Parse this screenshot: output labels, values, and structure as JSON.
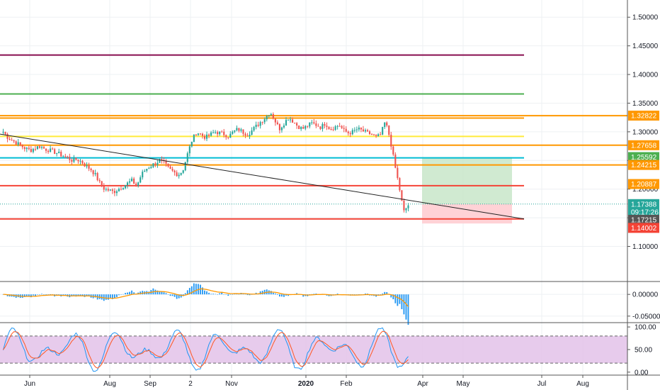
{
  "chart_data": {
    "type": "candlestick",
    "main": {
      "y_ticks": [
        "1.10000",
        "1.15000",
        "1.20000",
        "1.25000",
        "1.30000",
        "1.35000",
        "1.40000",
        "1.45000",
        "1.50000"
      ],
      "y_tick_values": [
        1.1,
        1.15,
        1.2,
        1.25,
        1.3,
        1.35,
        1.4,
        1.45,
        1.5
      ],
      "ylim": [
        1.04,
        1.53
      ],
      "x_ticks": [
        "Jun",
        "Aug",
        "Sep",
        "2",
        "Nov",
        "2020",
        "Feb",
        "Apr",
        "May",
        "Jul",
        "Aug"
      ],
      "price_path": [
        1.3,
        1.29,
        1.285,
        1.28,
        1.275,
        1.27,
        1.268,
        1.272,
        1.275,
        1.27,
        1.268,
        1.265,
        1.262,
        1.258,
        1.255,
        1.25,
        1.252,
        1.248,
        1.24,
        1.235,
        1.225,
        1.21,
        1.2,
        1.198,
        1.195,
        1.2,
        1.205,
        1.21,
        1.215,
        1.205,
        1.225,
        1.235,
        1.24,
        1.245,
        1.25,
        1.245,
        1.235,
        1.23,
        1.225,
        1.232,
        1.26,
        1.285,
        1.3,
        1.295,
        1.29,
        1.295,
        1.3,
        1.298,
        1.296,
        1.292,
        1.3,
        1.305,
        1.3,
        1.295,
        1.302,
        1.31,
        1.318,
        1.325,
        1.335,
        1.32,
        1.305,
        1.315,
        1.325,
        1.318,
        1.31,
        1.305,
        1.31,
        1.315,
        1.312,
        1.308,
        1.315,
        1.305,
        1.308,
        1.312,
        1.302,
        1.298,
        1.3,
        1.305,
        1.302,
        1.298,
        1.296,
        1.29,
        1.295,
        1.318,
        1.29,
        1.245,
        1.205,
        1.16,
        1.172
      ],
      "horizontal_lines": [
        {
          "price": 1.434,
          "color": "#880e4f",
          "label": ""
        },
        {
          "price": 1.366,
          "color": "#4caf50",
          "label": ""
        },
        {
          "price": 1.32822,
          "color": "#ff9800",
          "label": "1.32822"
        },
        {
          "price": 1.324,
          "color": "#ff9800",
          "label": ""
        },
        {
          "price": 1.292,
          "color": "#ffeb3b",
          "label": ""
        },
        {
          "price": 1.27658,
          "color": "#ff9800",
          "label": "1.27658"
        },
        {
          "price": 1.2545,
          "color": "#00bcd4",
          "label": ""
        },
        {
          "price": 1.24215,
          "color": "#ff9800",
          "label": "1.24215"
        },
        {
          "price": 1.206,
          "color": "#f44336",
          "label": ""
        },
        {
          "price": 1.148,
          "color": "#f44336",
          "label": ""
        }
      ],
      "price_labels": [
        {
          "text": "1.32822",
          "price": 1.32822,
          "color": "#ff9800"
        },
        {
          "text": "1.27658",
          "price": 1.27658,
          "color": "#ff9800"
        },
        {
          "text": "1.25592",
          "price": 1.25592,
          "color": "#4caf50"
        },
        {
          "text": "1.24215",
          "price": 1.24215,
          "color": "#ff9800"
        },
        {
          "text": "1.20887",
          "price": 1.20887,
          "color": "#ff9800"
        },
        {
          "text": "1.17388",
          "price": 1.17388,
          "color": "#26a69a"
        },
        {
          "text": "09:17:26",
          "price": 1.16,
          "color": "#26a69a"
        },
        {
          "text": "1.17215",
          "price": 1.1464,
          "color": "#555555"
        },
        {
          "text": "1.14002",
          "price": 1.1323,
          "color": "#f44336"
        }
      ],
      "position_box": {
        "entry": 1.1738,
        "target": 1.25592,
        "stop": 1.14
      },
      "trendline": {
        "start_price": 1.296,
        "end_price": 1.148
      }
    },
    "macd": {
      "y_ticks": [
        "0.00000",
        "-0.05000"
      ],
      "y_tick_values": [
        0.0,
        -0.05
      ],
      "ylim": [
        -0.065,
        0.028
      ]
    },
    "stochastic": {
      "y_ticks": [
        "100.00",
        "50.00",
        "0.00"
      ],
      "y_tick_values": [
        100,
        50,
        0
      ],
      "ylim": [
        -5,
        108
      ],
      "bands": [
        80,
        20
      ]
    }
  }
}
